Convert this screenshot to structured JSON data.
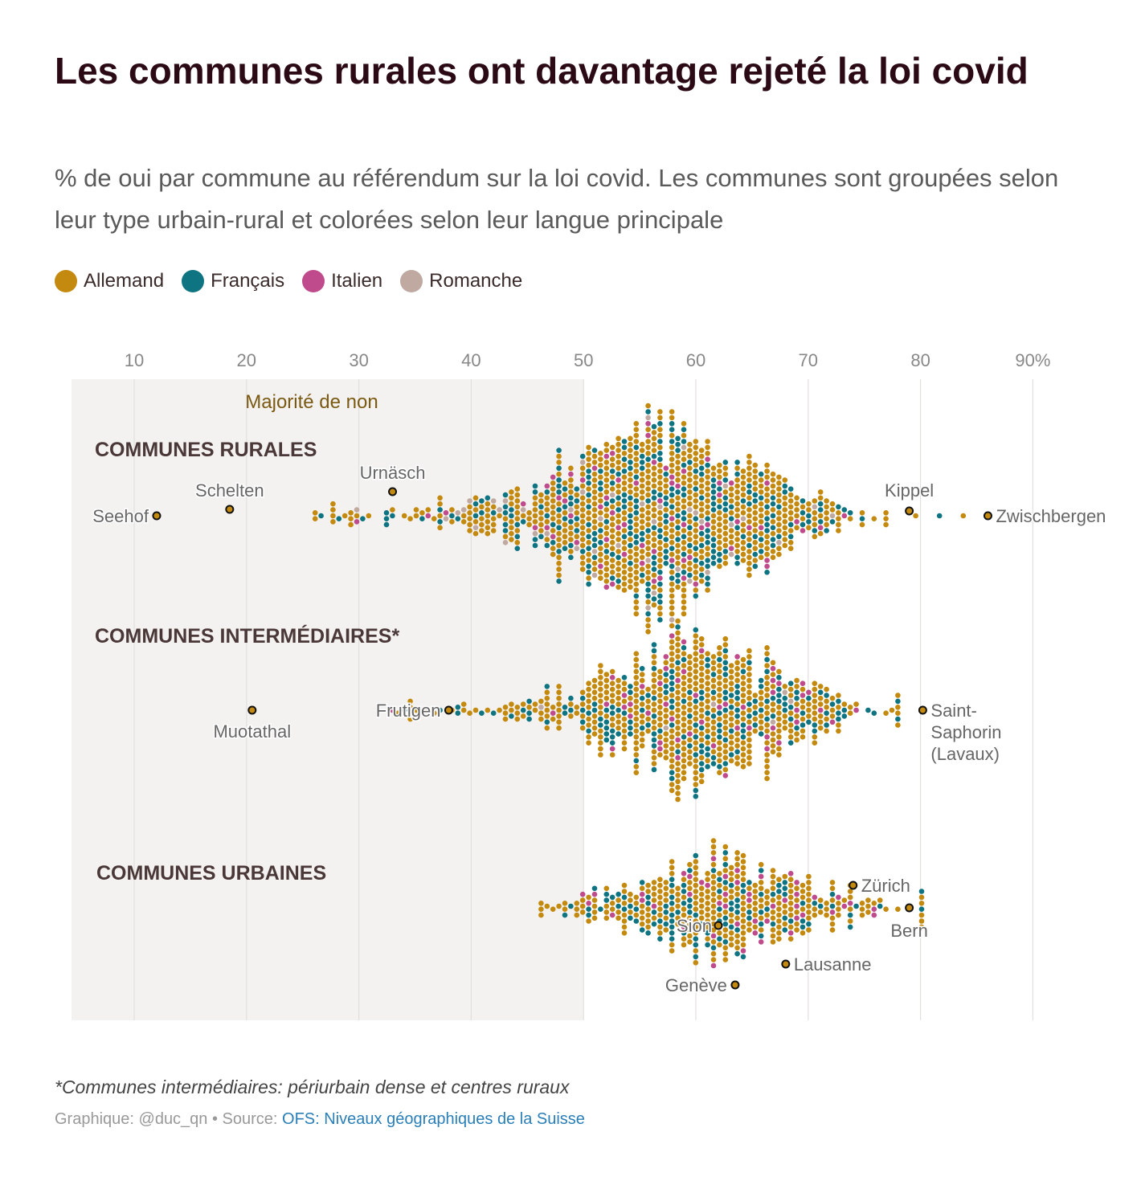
{
  "title": "Les communes rurales ont davantage rejeté la loi covid",
  "subtitle": "% de oui par commune au référendum sur la loi covid. Les communes sont groupées selon leur type urbain-rural et colorées selon leur langue principale",
  "legend": [
    {
      "label": "Allemand",
      "color": "#c48a0f"
    },
    {
      "label": "Français",
      "color": "#0f7482"
    },
    {
      "label": "Italien",
      "color": "#bf4a8c"
    },
    {
      "label": "Romanche",
      "color": "#bfa9a1"
    }
  ],
  "footnote": "*Communes intermédiaires: périurbain dense et centres ruraux",
  "credits": {
    "prefix": "Graphique: @duc_qn • Source: ",
    "source_link": "OFS: Niveaux géographiques de la Suisse"
  },
  "chart_data": {
    "type": "scatter",
    "subtype": "beeswarm",
    "xlim": [
      5,
      95
    ],
    "x_ticks": [
      10,
      20,
      30,
      40,
      50,
      60,
      70,
      80,
      90
    ],
    "x_tick_labels": [
      "10",
      "20",
      "30",
      "40",
      "50",
      "60",
      "70",
      "80",
      "90%"
    ],
    "shaded_region": {
      "from": 5,
      "to": 50,
      "label": "Majorité de non"
    },
    "groups": [
      {
        "label": "COMMUNES RURALES",
        "approx_count": 1100,
        "distribution": {
          "mean": 57,
          "sd": 7.5,
          "min": 12,
          "max": 86
        },
        "language_share": {
          "Allemand": 0.62,
          "Français": 0.28,
          "Italien": 0.06,
          "Romanche": 0.04
        },
        "annotated": [
          {
            "name": "Seehof",
            "value": 12
          },
          {
            "name": "Schelten",
            "value": 18.5
          },
          {
            "name": "Urnäsch",
            "value": 33
          },
          {
            "name": "Kippel",
            "value": 79
          },
          {
            "name": "Zwischbergen",
            "value": 86
          }
        ]
      },
      {
        "label": "COMMUNES INTERMÉDIAIRES*",
        "approx_count": 760,
        "distribution": {
          "mean": 60,
          "sd": 6.5,
          "min": 20.5,
          "max": 80.2
        },
        "language_share": {
          "Allemand": 0.66,
          "Français": 0.26,
          "Italien": 0.07,
          "Romanche": 0.01
        },
        "annotated": [
          {
            "name": "Muotathal",
            "value": 20.5
          },
          {
            "name": "Frutigen",
            "value": 38
          },
          {
            "name": "Saint-Saphorin (Lavaux)",
            "value": 80.2
          }
        ]
      },
      {
        "label": "COMMUNES URBAINES",
        "approx_count": 470,
        "distribution": {
          "mean": 63,
          "sd": 7,
          "min": 44,
          "max": 82
        },
        "language_share": {
          "Allemand": 0.64,
          "Français": 0.24,
          "Italien": 0.12,
          "Romanche": 0.0
        },
        "annotated": [
          {
            "name": "Zürich",
            "value": 74
          },
          {
            "name": "Bern",
            "value": 79
          },
          {
            "name": "Sion",
            "value": 62
          },
          {
            "name": "Lausanne",
            "value": 68
          },
          {
            "name": "Genève",
            "value": 63.5
          }
        ]
      }
    ]
  }
}
